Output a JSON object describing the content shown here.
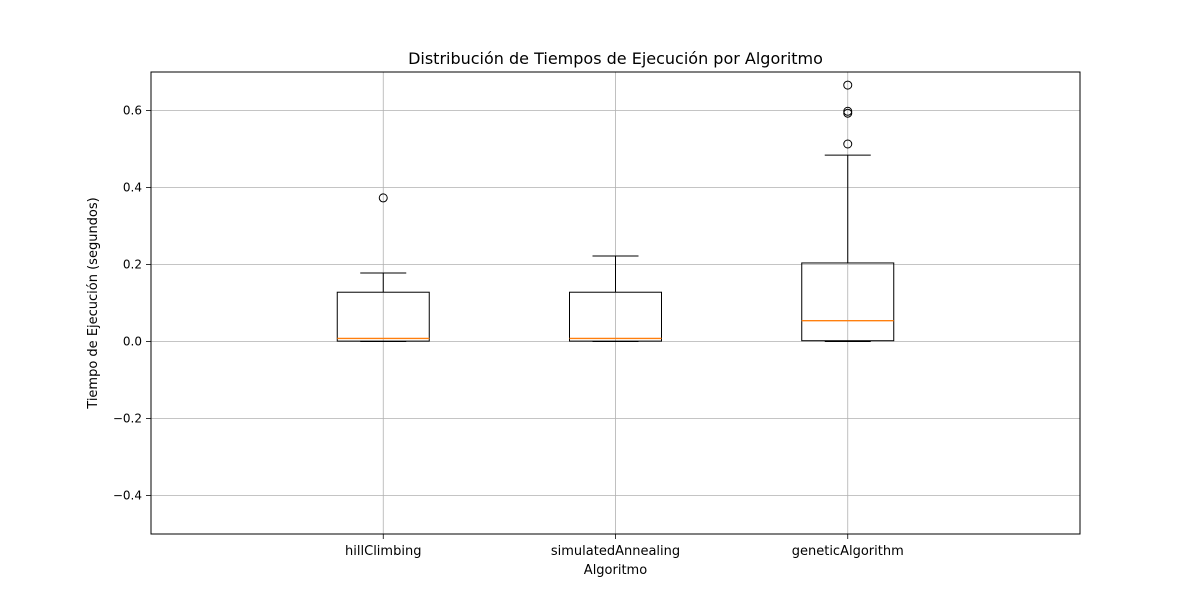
{
  "chart_data": {
    "type": "boxplot",
    "title": "Distribución de Tiempos de Ejecución por Algoritmo",
    "xlabel": "Algoritmo",
    "ylabel": "Tiempo de Ejecución (segundos)",
    "ylim": [
      -0.5,
      0.7
    ],
    "yticks": [
      -0.4,
      -0.2,
      0.0,
      0.2,
      0.4,
      0.6
    ],
    "ytick_labels": [
      "−0.4",
      "−0.2",
      "0.0",
      "0.2",
      "0.4",
      "0.6"
    ],
    "grid": true,
    "categories": [
      "hillClimbing",
      "simulatedAnnealing",
      "geneticAlgorithm"
    ],
    "boxes": [
      {
        "name": "hillClimbing",
        "whisker_low": 0.0,
        "q1": 0.001,
        "median": 0.008,
        "q3": 0.128,
        "whisker_high": 0.178,
        "outliers": [
          0.373
        ]
      },
      {
        "name": "simulatedAnnealing",
        "whisker_low": 0.0,
        "q1": 0.001,
        "median": 0.008,
        "q3": 0.128,
        "whisker_high": 0.222,
        "outliers": []
      },
      {
        "name": "geneticAlgorithm",
        "whisker_low": 0.0,
        "q1": 0.002,
        "median": 0.054,
        "q3": 0.204,
        "whisker_high": 0.484,
        "outliers": [
          0.513,
          0.593,
          0.598,
          0.666
        ]
      }
    ],
    "colors": {
      "box": "#000000",
      "median": "#ff7f0e",
      "grid": "#b0b0b0"
    }
  }
}
